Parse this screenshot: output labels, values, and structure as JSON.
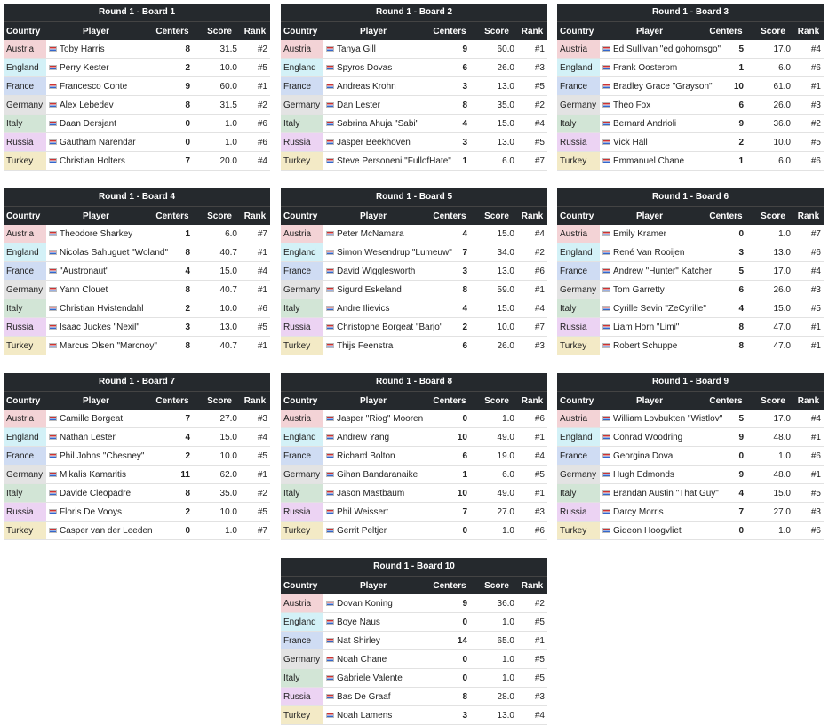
{
  "columns": [
    "Country",
    "Player",
    "Centers",
    "Score",
    "Rank"
  ],
  "boards": [
    {
      "title": "Round 1 - Board 1",
      "rows": [
        [
          "Austria",
          "Toby Harris",
          8,
          "31.5",
          "#2"
        ],
        [
          "England",
          "Perry Kester",
          2,
          "10.0",
          "#5"
        ],
        [
          "France",
          "Francesco Conte",
          9,
          "60.0",
          "#1"
        ],
        [
          "Germany",
          "Alex Lebedev",
          8,
          "31.5",
          "#2"
        ],
        [
          "Italy",
          "Daan Dersjant",
          0,
          "1.0",
          "#6"
        ],
        [
          "Russia",
          "Gautham Narendar",
          0,
          "1.0",
          "#6"
        ],
        [
          "Turkey",
          "Christian Holters",
          7,
          "20.0",
          "#4"
        ]
      ]
    },
    {
      "title": "Round 1 - Board 2",
      "rows": [
        [
          "Austria",
          "Tanya Gill",
          9,
          "60.0",
          "#1"
        ],
        [
          "England",
          "Spyros Dovas",
          6,
          "26.0",
          "#3"
        ],
        [
          "France",
          "Andreas Krohn",
          3,
          "13.0",
          "#5"
        ],
        [
          "Germany",
          "Dan Lester",
          8,
          "35.0",
          "#2"
        ],
        [
          "Italy",
          "Sabrina Ahuja \"Sabi\"",
          4,
          "15.0",
          "#4"
        ],
        [
          "Russia",
          "Jasper Beekhoven",
          3,
          "13.0",
          "#5"
        ],
        [
          "Turkey",
          "Steve Personeni \"FullofHate\"",
          1,
          "6.0",
          "#7"
        ]
      ]
    },
    {
      "title": "Round 1 - Board 3",
      "rows": [
        [
          "Austria",
          "Ed Sullivan \"ed gohornsgo\"",
          5,
          "17.0",
          "#4"
        ],
        [
          "England",
          "Frank Oosterom",
          1,
          "6.0",
          "#6"
        ],
        [
          "France",
          "Bradley Grace \"Grayson\"",
          10,
          "61.0",
          "#1"
        ],
        [
          "Germany",
          "Theo Fox",
          6,
          "26.0",
          "#3"
        ],
        [
          "Italy",
          "Bernard Andrioli",
          9,
          "36.0",
          "#2"
        ],
        [
          "Russia",
          "Vick Hall",
          2,
          "10.0",
          "#5"
        ],
        [
          "Turkey",
          "Emmanuel Chane",
          1,
          "6.0",
          "#6"
        ]
      ]
    },
    {
      "title": "Round 1 - Board 4",
      "rows": [
        [
          "Austria",
          "Theodore Sharkey",
          1,
          "6.0",
          "#7"
        ],
        [
          "England",
          "Nicolas Sahuguet \"Woland\"",
          8,
          "40.7",
          "#1"
        ],
        [
          "France",
          "\"Austronaut\"",
          4,
          "15.0",
          "#4"
        ],
        [
          "Germany",
          "Yann Clouet",
          8,
          "40.7",
          "#1"
        ],
        [
          "Italy",
          "Christian Hvistendahl",
          2,
          "10.0",
          "#6"
        ],
        [
          "Russia",
          "Isaac Juckes \"Nexil\"",
          3,
          "13.0",
          "#5"
        ],
        [
          "Turkey",
          "Marcus Olsen \"Marcnoy\"",
          8,
          "40.7",
          "#1"
        ]
      ]
    },
    {
      "title": "Round 1 - Board 5",
      "rows": [
        [
          "Austria",
          "Peter McNamara",
          4,
          "15.0",
          "#4"
        ],
        [
          "England",
          "Simon Wesendrup \"Lumeuw\"",
          7,
          "34.0",
          "#2"
        ],
        [
          "France",
          "David Wigglesworth",
          3,
          "13.0",
          "#6"
        ],
        [
          "Germany",
          "Sigurd Eskeland",
          8,
          "59.0",
          "#1"
        ],
        [
          "Italy",
          "Andre Ilievics",
          4,
          "15.0",
          "#4"
        ],
        [
          "Russia",
          "Christophe Borgeat \"Barjo\"",
          2,
          "10.0",
          "#7"
        ],
        [
          "Turkey",
          "Thijs Feenstra",
          6,
          "26.0",
          "#3"
        ]
      ]
    },
    {
      "title": "Round 1 - Board 6",
      "rows": [
        [
          "Austria",
          "Emily Kramer",
          0,
          "1.0",
          "#7"
        ],
        [
          "England",
          "René Van Rooijen",
          3,
          "13.0",
          "#6"
        ],
        [
          "France",
          "Andrew \"Hunter\" Katcher",
          5,
          "17.0",
          "#4"
        ],
        [
          "Germany",
          "Tom Garretty",
          6,
          "26.0",
          "#3"
        ],
        [
          "Italy",
          "Cyrille Sevin \"ZeCyrille\"",
          4,
          "15.0",
          "#5"
        ],
        [
          "Russia",
          "Liam Horn \"Limi\"",
          8,
          "47.0",
          "#1"
        ],
        [
          "Turkey",
          "Robert Schuppe",
          8,
          "47.0",
          "#1"
        ]
      ]
    },
    {
      "title": "Round 1 - Board 7",
      "rows": [
        [
          "Austria",
          "Camille Borgeat",
          7,
          "27.0",
          "#3"
        ],
        [
          "England",
          "Nathan Lester",
          4,
          "15.0",
          "#4"
        ],
        [
          "France",
          "Phil Johns \"Chesney\"",
          2,
          "10.0",
          "#5"
        ],
        [
          "Germany",
          "Mikalis Kamaritis",
          11,
          "62.0",
          "#1"
        ],
        [
          "Italy",
          "Davide Cleopadre",
          8,
          "35.0",
          "#2"
        ],
        [
          "Russia",
          "Floris De Vooys",
          2,
          "10.0",
          "#5"
        ],
        [
          "Turkey",
          "Casper van der Leeden",
          0,
          "1.0",
          "#7"
        ]
      ]
    },
    {
      "title": "Round 1 - Board 8",
      "rows": [
        [
          "Austria",
          "Jasper \"Riog\" Mooren",
          0,
          "1.0",
          "#6"
        ],
        [
          "England",
          "Andrew Yang",
          10,
          "49.0",
          "#1"
        ],
        [
          "France",
          "Richard Bolton",
          6,
          "19.0",
          "#4"
        ],
        [
          "Germany",
          "Gihan Bandaranaike",
          1,
          "6.0",
          "#5"
        ],
        [
          "Italy",
          "Jason Mastbaum",
          10,
          "49.0",
          "#1"
        ],
        [
          "Russia",
          "Phil Weissert",
          7,
          "27.0",
          "#3"
        ],
        [
          "Turkey",
          "Gerrit Peltjer",
          0,
          "1.0",
          "#6"
        ]
      ]
    },
    {
      "title": "Round 1 - Board 9",
      "rows": [
        [
          "Austria",
          "William Lovbukten \"Wistlov\"",
          5,
          "17.0",
          "#4"
        ],
        [
          "England",
          "Conrad Woodring",
          9,
          "48.0",
          "#1"
        ],
        [
          "France",
          "Georgina Dova",
          0,
          "1.0",
          "#6"
        ],
        [
          "Germany",
          "Hugh Edmonds",
          9,
          "48.0",
          "#1"
        ],
        [
          "Italy",
          "Brandan Austin \"That Guy\"",
          4,
          "15.0",
          "#5"
        ],
        [
          "Russia",
          "Darcy Morris",
          7,
          "27.0",
          "#3"
        ],
        [
          "Turkey",
          "Gideon Hoogvliet",
          0,
          "1.0",
          "#6"
        ]
      ]
    },
    {
      "title": "Round 1 - Board 10",
      "rows": [
        [
          "Austria",
          "Dovan Koning",
          9,
          "36.0",
          "#2"
        ],
        [
          "England",
          "Boye Naus",
          0,
          "1.0",
          "#5"
        ],
        [
          "France",
          "Nat Shirley",
          14,
          "65.0",
          "#1"
        ],
        [
          "Germany",
          "Noah Chane",
          0,
          "1.0",
          "#5"
        ],
        [
          "Italy",
          "Gabriele Valente",
          0,
          "1.0",
          "#5"
        ],
        [
          "Russia",
          "Bas De Graaf",
          8,
          "28.0",
          "#3"
        ],
        [
          "Turkey",
          "Noah Lamens",
          3,
          "13.0",
          "#4"
        ]
      ]
    }
  ]
}
